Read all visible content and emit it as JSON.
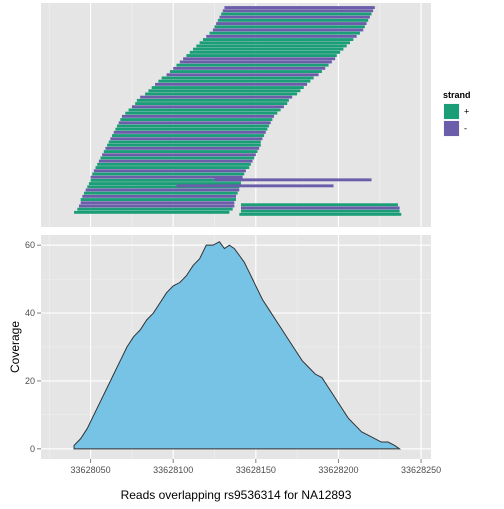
{
  "chart_data": [
    {
      "type": "bar",
      "subtype": "read-alignment",
      "title": "",
      "xlim": [
        33628020,
        33628256
      ],
      "grid": true,
      "background_color": "#E5E5E5",
      "legend": {
        "title": "strand",
        "placement": "right",
        "items": [
          {
            "label": "+",
            "color": "#1B9E77"
          },
          {
            "label": "-",
            "color": "#6C5DAA"
          }
        ]
      },
      "reads": [
        {
          "start": 33628040,
          "end": 33628134,
          "strand": "+"
        },
        {
          "start": 33628042,
          "end": 33628136,
          "strand": "+"
        },
        {
          "start": 33628043,
          "end": 33628137,
          "strand": "-"
        },
        {
          "start": 33628044,
          "end": 33628137,
          "strand": "-"
        },
        {
          "start": 33628044,
          "end": 33628138,
          "strand": "+"
        },
        {
          "start": 33628045,
          "end": 33628138,
          "strand": "-"
        },
        {
          "start": 33628046,
          "end": 33628139,
          "strand": "+"
        },
        {
          "start": 33628047,
          "end": 33628140,
          "strand": "-"
        },
        {
          "start": 33628048,
          "end": 33628140,
          "strand": "+"
        },
        {
          "start": 33628049,
          "end": 33628141,
          "strand": "+"
        },
        {
          "start": 33628050,
          "end": 33628141,
          "strand": "+"
        },
        {
          "start": 33628050,
          "end": 33628142,
          "strand": "-"
        },
        {
          "start": 33628051,
          "end": 33628143,
          "strand": "+"
        },
        {
          "start": 33628052,
          "end": 33628144,
          "strand": "-"
        },
        {
          "start": 33628053,
          "end": 33628146,
          "strand": "+"
        },
        {
          "start": 33628054,
          "end": 33628147,
          "strand": "+"
        },
        {
          "start": 33628055,
          "end": 33628148,
          "strand": "-"
        },
        {
          "start": 33628056,
          "end": 33628149,
          "strand": "+"
        },
        {
          "start": 33628057,
          "end": 33628150,
          "strand": "-"
        },
        {
          "start": 33628058,
          "end": 33628151,
          "strand": "+"
        },
        {
          "start": 33628059,
          "end": 33628152,
          "strand": "-"
        },
        {
          "start": 33628060,
          "end": 33628153,
          "strand": "+"
        },
        {
          "start": 33628061,
          "end": 33628153,
          "strand": "+"
        },
        {
          "start": 33628062,
          "end": 33628154,
          "strand": "-"
        },
        {
          "start": 33628063,
          "end": 33628155,
          "strand": "+"
        },
        {
          "start": 33628064,
          "end": 33628156,
          "strand": "-"
        },
        {
          "start": 33628065,
          "end": 33628157,
          "strand": "+"
        },
        {
          "start": 33628066,
          "end": 33628158,
          "strand": "+"
        },
        {
          "start": 33628067,
          "end": 33628159,
          "strand": "-"
        },
        {
          "start": 33628068,
          "end": 33628160,
          "strand": "+"
        },
        {
          "start": 33628069,
          "end": 33628161,
          "strand": "-"
        },
        {
          "start": 33628071,
          "end": 33628163,
          "strand": "+"
        },
        {
          "start": 33628073,
          "end": 33628165,
          "strand": "+"
        },
        {
          "start": 33628075,
          "end": 33628167,
          "strand": "-"
        },
        {
          "start": 33628077,
          "end": 33628169,
          "strand": "+"
        },
        {
          "start": 33628078,
          "end": 33628170,
          "strand": "+"
        },
        {
          "start": 33628080,
          "end": 33628172,
          "strand": "-"
        },
        {
          "start": 33628083,
          "end": 33628175,
          "strand": "+"
        },
        {
          "start": 33628085,
          "end": 33628177,
          "strand": "+"
        },
        {
          "start": 33628087,
          "end": 33628179,
          "strand": "+"
        },
        {
          "start": 33628089,
          "end": 33628181,
          "strand": "-"
        },
        {
          "start": 33628091,
          "end": 33628183,
          "strand": "+"
        },
        {
          "start": 33628093,
          "end": 33628185,
          "strand": "+"
        },
        {
          "start": 33628096,
          "end": 33628188,
          "strand": "-"
        },
        {
          "start": 33628098,
          "end": 33628190,
          "strand": "+"
        },
        {
          "start": 33628100,
          "end": 33628192,
          "strand": "-"
        },
        {
          "start": 33628102,
          "end": 33628194,
          "strand": "+"
        },
        {
          "start": 33628104,
          "end": 33628196,
          "strand": "-"
        },
        {
          "start": 33628106,
          "end": 33628198,
          "strand": "-"
        },
        {
          "start": 33628108,
          "end": 33628199,
          "strand": "+"
        },
        {
          "start": 33628110,
          "end": 33628201,
          "strand": "+"
        },
        {
          "start": 33628112,
          "end": 33628203,
          "strand": "+"
        },
        {
          "start": 33628114,
          "end": 33628205,
          "strand": "+"
        },
        {
          "start": 33628116,
          "end": 33628207,
          "strand": "+"
        },
        {
          "start": 33628118,
          "end": 33628209,
          "strand": "+"
        },
        {
          "start": 33628120,
          "end": 33628211,
          "strand": "-"
        },
        {
          "start": 33628122,
          "end": 33628213,
          "strand": "+"
        },
        {
          "start": 33628124,
          "end": 33628215,
          "strand": "-"
        },
        {
          "start": 33628125,
          "end": 33628216,
          "strand": "+"
        },
        {
          "start": 33628126,
          "end": 33628217,
          "strand": "-"
        },
        {
          "start": 33628127,
          "end": 33628218,
          "strand": "+"
        },
        {
          "start": 33628128,
          "end": 33628219,
          "strand": "-"
        },
        {
          "start": 33628129,
          "end": 33628220,
          "strand": "+"
        },
        {
          "start": 33628130,
          "end": 33628221,
          "strand": "-"
        },
        {
          "start": 33628131,
          "end": 33628222,
          "strand": "-"
        }
      ],
      "long_reads": [
        {
          "start": 33628140,
          "end": 33628238,
          "strand": "+"
        },
        {
          "start": 33628141,
          "end": 33628237,
          "strand": "+"
        },
        {
          "start": 33628141,
          "end": 33628237,
          "strand": "-"
        },
        {
          "start": 33628141,
          "end": 33628236,
          "strand": "+"
        },
        {
          "start": 33628102,
          "end": 33628197,
          "strand": "-"
        },
        {
          "start": 33628125,
          "end": 33628220,
          "strand": "-"
        }
      ]
    },
    {
      "type": "area",
      "title": "",
      "xlabel": "Reads overlapping rs9536314 for NA12893",
      "ylabel": "Coverage",
      "xlim": [
        33628020,
        33628256
      ],
      "ylim": [
        -3,
        63
      ],
      "x_ticks": [
        33628050,
        33628100,
        33628150,
        33628200,
        33628250
      ],
      "x_tick_labels": [
        "33628050",
        "33628100",
        "33628150",
        "33628200",
        "33628250"
      ],
      "y_ticks": [
        0,
        20,
        40,
        60
      ],
      "y_tick_labels": [
        "0",
        "20",
        "40",
        "60"
      ],
      "grid": true,
      "fill_color": "#77C3E6",
      "line_color": "#333333",
      "x": [
        33628040,
        33628040,
        33628044,
        33628048,
        33628052,
        33628056,
        33628060,
        33628064,
        33628068,
        33628072,
        33628076,
        33628080,
        33628084,
        33628088,
        33628092,
        33628096,
        33628100,
        33628104,
        33628108,
        33628112,
        33628116,
        33628120,
        33628124,
        33628128,
        33628131,
        33628134,
        33628137,
        33628140,
        33628143,
        33628146,
        33628150,
        33628154,
        33628158,
        33628162,
        33628166,
        33628170,
        33628174,
        33628178,
        33628182,
        33628186,
        33628190,
        33628194,
        33628198,
        33628202,
        33628206,
        33628210,
        33628214,
        33628218,
        33628222,
        33628226,
        33628230,
        33628234,
        33628237
      ],
      "y": [
        0,
        1,
        3,
        6,
        10,
        14,
        18,
        22,
        26,
        30,
        33,
        35,
        38,
        40,
        43,
        46,
        48,
        49,
        51,
        54,
        56,
        60,
        60,
        61,
        59,
        60,
        59,
        57,
        55,
        52,
        48,
        44,
        41,
        38,
        35,
        32,
        29,
        26,
        24,
        22,
        21,
        18,
        15,
        12,
        9,
        7,
        5,
        4,
        3,
        2,
        2,
        1,
        0
      ]
    }
  ]
}
